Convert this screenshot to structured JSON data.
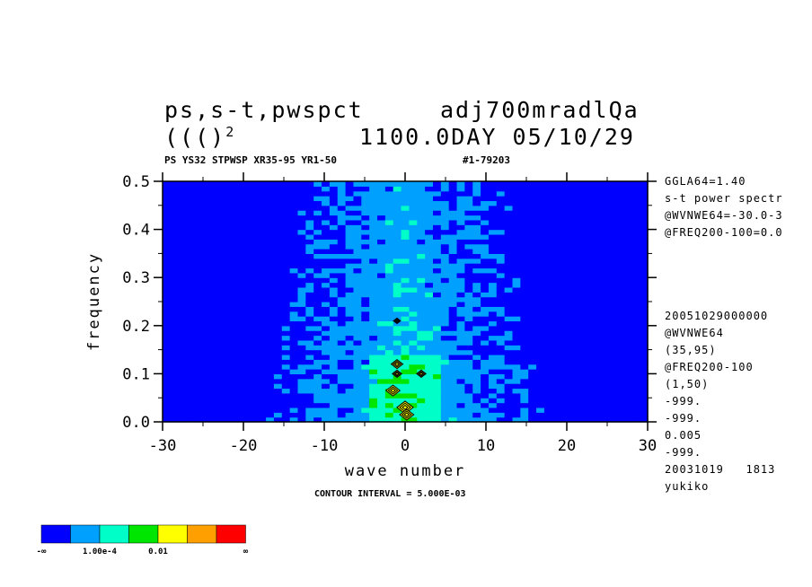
{
  "header": {
    "title_left": "ps,s-t,pwspct",
    "title_right": "adj700mradlQa",
    "line2_left": "((()",
    "line2_sup": "2",
    "line2_right": "1100.0DAY 05/10/29",
    "subtitle_left": "PS YS32 STPWSP XR35-95 YR1-50",
    "subtitle_right": "#1-79203"
  },
  "side_info_top": [
    "GGLA64=1.40",
    "s-t power spectr",
    "@WVNWE64=-30.0-3",
    "@FREQ200-100=0.0"
  ],
  "side_info_bottom": [
    "20051029000000",
    "@WVNWE64",
    "(35,95)",
    "@FREQ200-100",
    "(1,50)",
    "-999.",
    "-999.",
    "0.005",
    "-999.",
    "20031019   1813",
    "yukiko"
  ],
  "contour_note": "CONTOUR INTERVAL = 5.000E-03",
  "colorbar": {
    "colors": [
      "#0000ff",
      "#00a0ff",
      "#00ffc8",
      "#00e600",
      "#ffff00",
      "#ffa000",
      "#ff0000"
    ],
    "labels": [
      "-∞",
      "1.00e-4",
      "0.01",
      "∞"
    ]
  },
  "chart_data": {
    "type": "heatmap",
    "title": "ps,s-t,pwspct",
    "xlabel": "wave number",
    "ylabel": "frequency",
    "xlim": [
      -30,
      30
    ],
    "ylim": [
      0,
      0.5
    ],
    "x_ticks": [
      -30,
      -20,
      -10,
      0,
      10,
      20,
      30
    ],
    "x_tick_labels": [
      "-30",
      "-20",
      "-10",
      "0",
      "10",
      "20",
      "30"
    ],
    "y_ticks": [
      0.0,
      0.1,
      0.2,
      0.3,
      0.4,
      0.5
    ],
    "y_tick_labels": [
      "0.0",
      "0.1",
      "0.2",
      "0.3",
      "0.4",
      "0.5"
    ],
    "grid_nx": 61,
    "grid_ny": 50,
    "contour_interval": 0.005,
    "structure": "power concentrated near wave number 0, decreasing outward; maxima near (0,0.01) and (0,0.12)"
  }
}
